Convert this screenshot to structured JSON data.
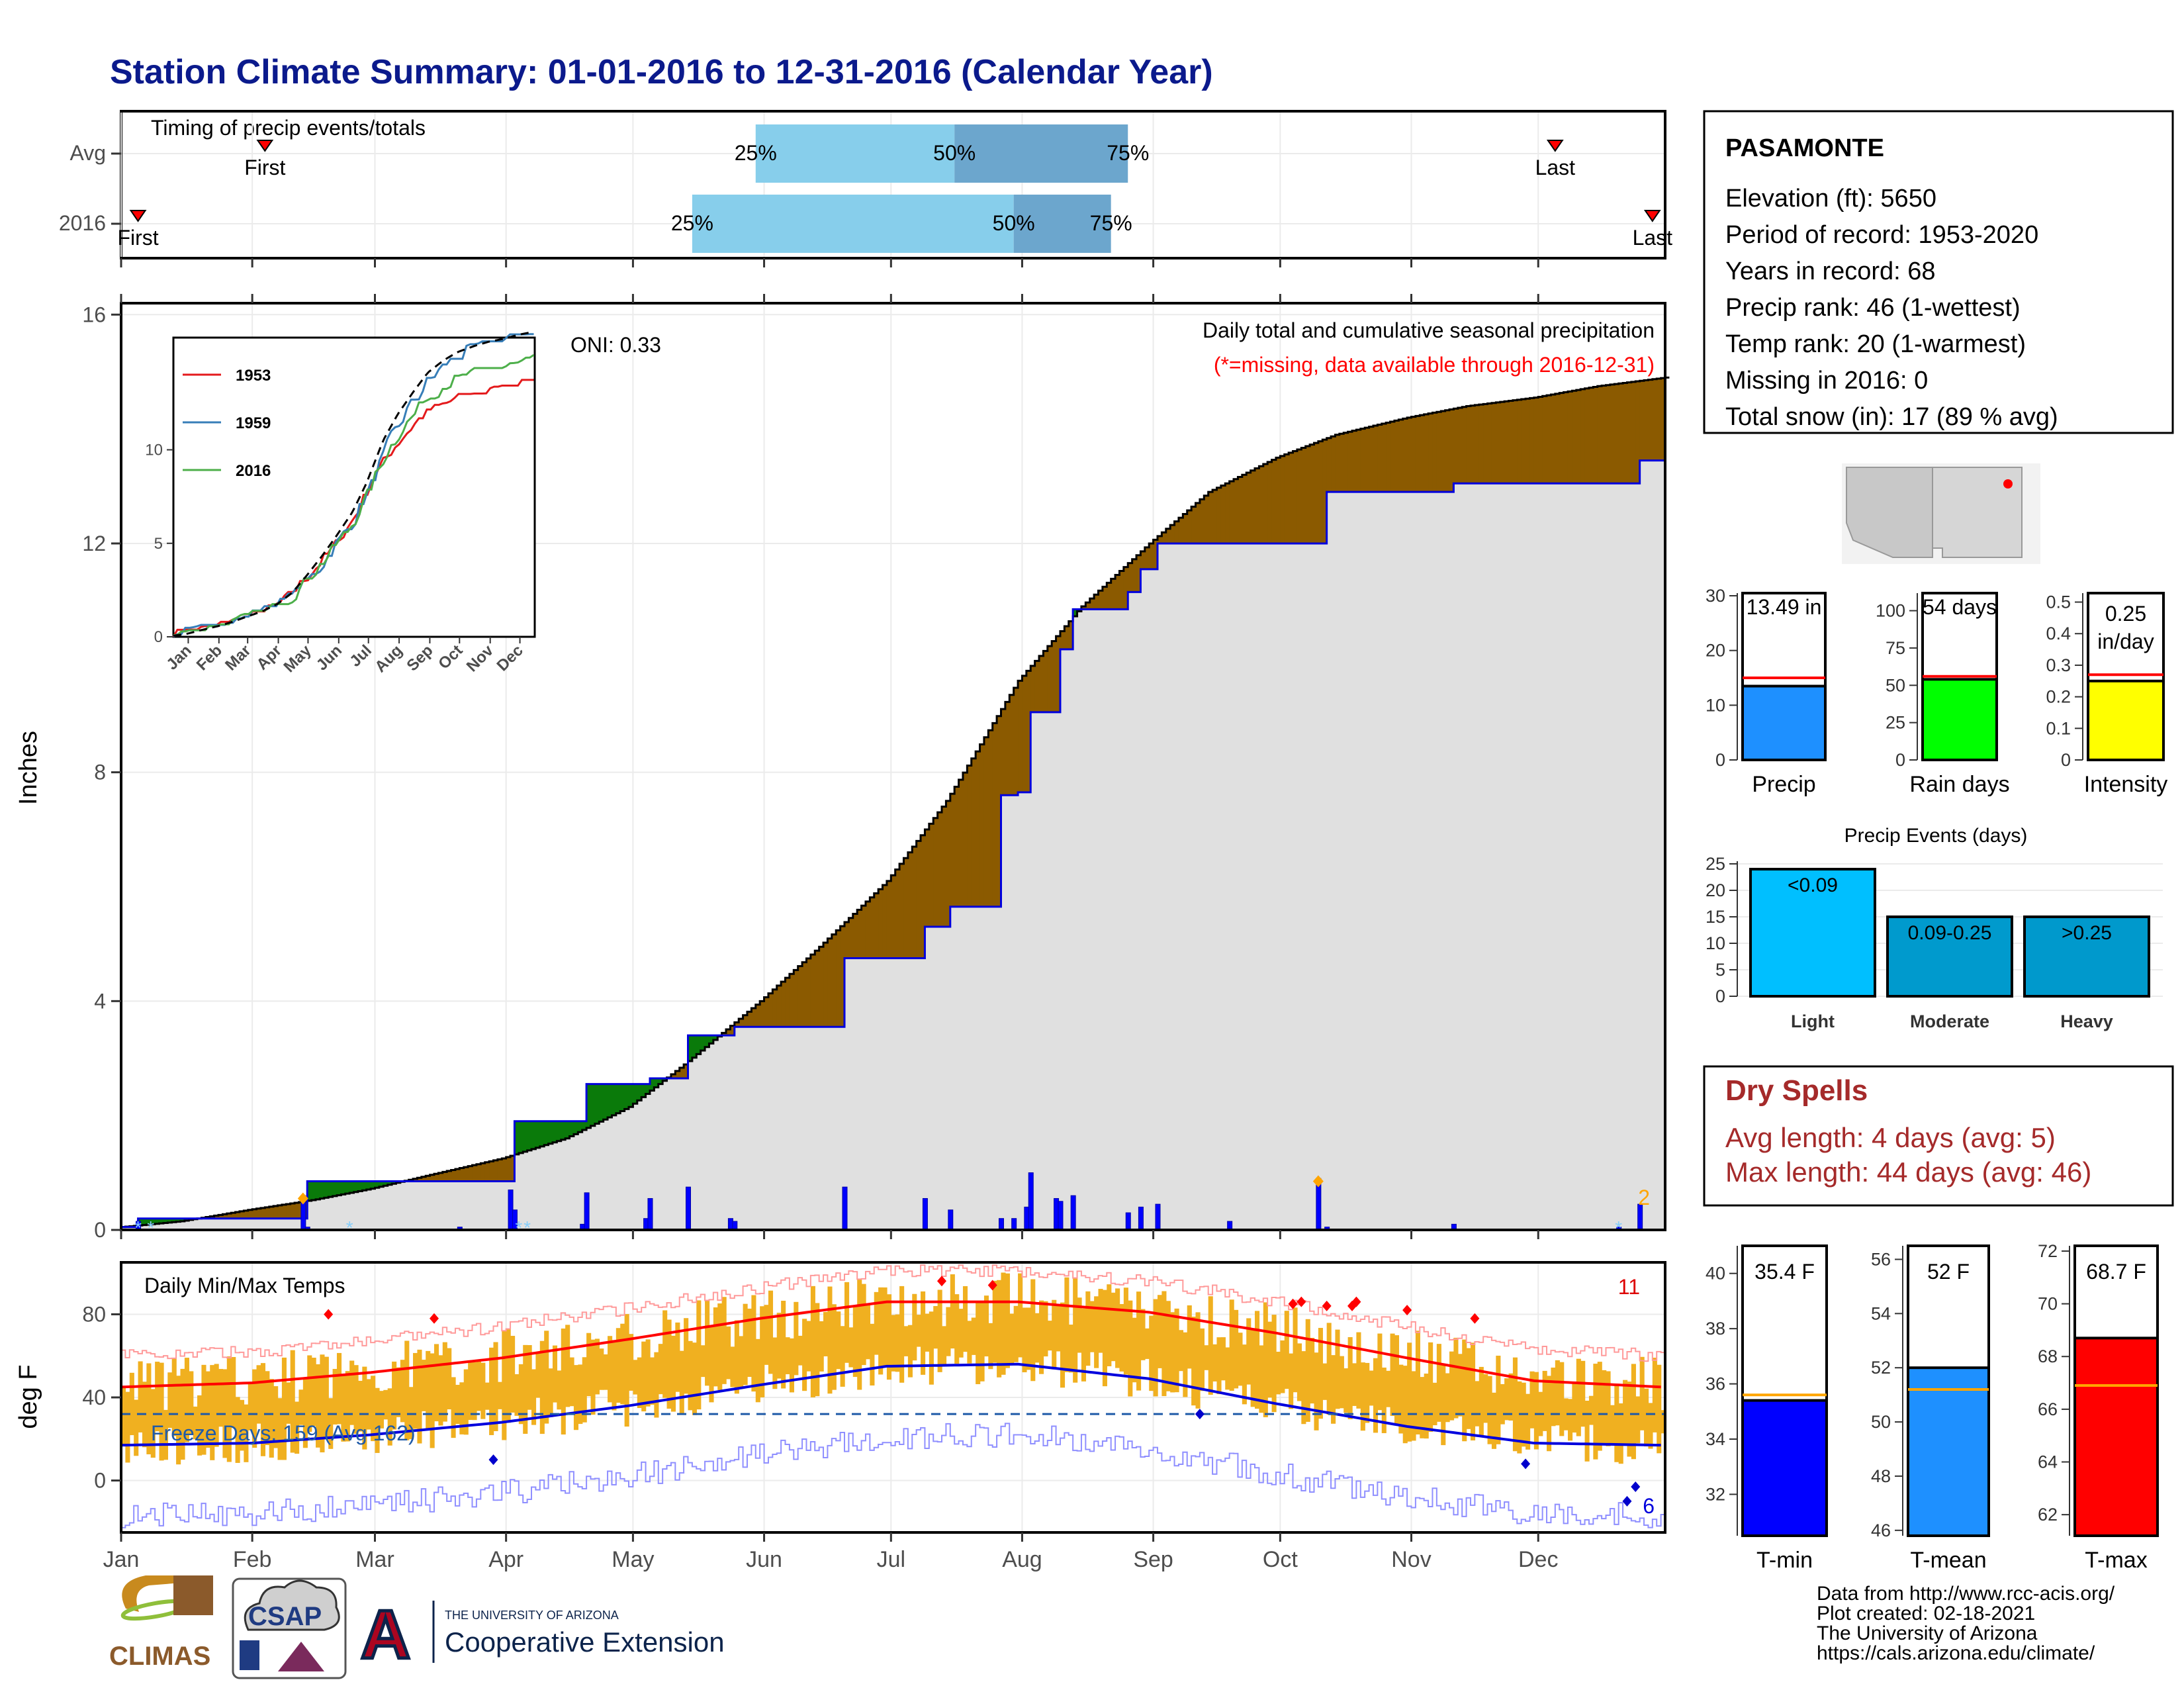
{
  "title": "Station Climate Summary: 01-01-2016 to 12-31-2016 (Calendar Year)",
  "timing": {
    "heading": "Timing of precip events/totals",
    "rows": [
      {
        "label": "Avg",
        "first_label": "First",
        "last_label": "Last",
        "first_day": 35,
        "last_day": 340,
        "p25_day": 151,
        "p50_day": 198,
        "p75_day": 239
      },
      {
        "label": "2016",
        "first_label": "First",
        "last_label": "Last",
        "first_day": 5,
        "last_day": 363,
        "p25_day": 136,
        "p50_day": 212,
        "p75_day": 235
      }
    ],
    "pct_labels": [
      "25%",
      "50%",
      "75%"
    ]
  },
  "precip_panel": {
    "ylabel": "Inches",
    "yticks": [
      0,
      4,
      8,
      12,
      16
    ],
    "ylim": [
      0,
      16
    ],
    "oni": "ONI: 0.33",
    "legend_title": "Daily total and cumulative seasonal precipitation",
    "legend_note": "(*=missing, data available through 2016-12-31)",
    "count_label": "2",
    "colors": {
      "avg_fill": "#8b5a00",
      "above_fill": "#0a7a0a",
      "below_fill": "#e0e0e0",
      "year_line": "#0000dd",
      "bars": "#0000ff",
      "snow": "#87cefa"
    }
  },
  "chart_data": [
    {
      "type": "area",
      "name": "cumulative precipitation",
      "x_unit": "day of year",
      "ylim": [
        0,
        16
      ],
      "series": [
        {
          "name": "Avg",
          "x": [
            1,
            15,
            31,
            46,
            60,
            75,
            91,
            106,
            121,
            135,
            152,
            166,
            182,
            196,
            213,
            228,
            244,
            258,
            274,
            288,
            305,
            319,
            335,
            350,
            366
          ],
          "y": [
            0.05,
            0.15,
            0.35,
            0.52,
            0.72,
            0.98,
            1.25,
            1.6,
            2.15,
            2.95,
            4.0,
            4.95,
            6.1,
            7.5,
            9.6,
            10.9,
            12.0,
            12.9,
            13.5,
            13.9,
            14.2,
            14.4,
            14.55,
            14.75,
            14.9
          ]
        },
        {
          "name": "2016",
          "x": [
            1,
            5,
            44,
            45,
            81,
            93,
            94,
            110,
            111,
            125,
            126,
            134,
            135,
            145,
            146,
            171,
            172,
            190,
            191,
            196,
            197,
            208,
            209,
            212,
            213,
            215,
            216,
            222,
            223,
            225,
            226,
            238,
            239,
            241,
            242,
            245,
            246,
            262,
            263,
            284,
            286,
            315,
            316,
            355,
            360,
            365
          ],
          "y": [
            0.05,
            0.2,
            0.2,
            0.85,
            0.85,
            0.85,
            1.9,
            1.9,
            2.55,
            2.55,
            2.65,
            2.65,
            3.4,
            3.4,
            3.55,
            3.55,
            4.75,
            4.75,
            5.3,
            5.3,
            5.65,
            5.65,
            7.6,
            7.6,
            7.65,
            7.65,
            9.05,
            9.05,
            10.15,
            10.15,
            10.85,
            10.85,
            11.15,
            11.15,
            11.55,
            11.55,
            12.0,
            12.0,
            12.0,
            12.0,
            12.9,
            12.9,
            13.05,
            13.05,
            13.45,
            13.45
          ]
        }
      ]
    },
    {
      "type": "bar",
      "name": "daily precipitation",
      "x_unit": "day of year",
      "x": [
        5,
        44,
        45,
        81,
        93,
        94,
        110,
        111,
        125,
        126,
        135,
        145,
        146,
        172,
        191,
        197,
        209,
        212,
        215,
        216,
        222,
        223,
        226,
        239,
        242,
        246,
        263,
        284,
        286,
        316,
        355,
        360
      ],
      "values": [
        0.15,
        0.6,
        0.05,
        0.05,
        0.7,
        0.35,
        0.1,
        0.65,
        0.2,
        0.55,
        0.75,
        0.2,
        0.15,
        0.75,
        0.55,
        0.35,
        0.2,
        0.2,
        0.4,
        1.0,
        0.55,
        0.5,
        0.6,
        0.3,
        0.4,
        0.45,
        0.15,
        0.9,
        0.05,
        0.1,
        0.05,
        0.45
      ]
    },
    {
      "type": "line",
      "name": "inset cumulative",
      "series_labels": [
        "1953",
        "1959",
        "2016"
      ],
      "colors": [
        "#e41a1c",
        "#377eb8",
        "#4daf4a"
      ],
      "yticks": [
        0,
        5,
        10
      ],
      "xticks": [
        "Jan",
        "Feb",
        "Mar",
        "Apr",
        "May",
        "Jun",
        "Jul",
        "Aug",
        "Sep",
        "Oct",
        "Nov",
        "Dec"
      ]
    },
    {
      "type": "bar",
      "name": "Daily Min/Max Temps",
      "title": "Daily Min/Max Temps",
      "ylabel": "deg F",
      "yticks": [
        0,
        40,
        80
      ],
      "ylim": [
        -25,
        105
      ],
      "freeze_label": "Freeze Days: 159 (Avg 162)",
      "record_high_count": "11",
      "record_low_count": "6",
      "xticks": [
        "Jan",
        "Feb",
        "Mar",
        "Apr",
        "May",
        "Jun",
        "Jul",
        "Aug",
        "Sep",
        "Oct",
        "Nov",
        "Dec"
      ],
      "normal_max_anchors": {
        "day": [
          1,
          32,
          60,
          91,
          121,
          152,
          182,
          213,
          244,
          274,
          305,
          335,
          365
        ],
        "temp": [
          45,
          47,
          52,
          59,
          68,
          78,
          86,
          86,
          81,
          71,
          59,
          48,
          45
        ]
      },
      "normal_min_anchors": {
        "day": [
          1,
          32,
          60,
          91,
          121,
          152,
          182,
          213,
          244,
          274,
          305,
          335,
          365
        ],
        "temp": [
          17,
          18,
          22,
          28,
          36,
          46,
          55,
          56,
          49,
          37,
          26,
          18,
          17
        ]
      }
    }
  ],
  "station": {
    "name": "PASAMONTE",
    "lines": [
      "Elevation (ft): 5650",
      "Period of record: 1953-2020",
      "Years in record: 68",
      "Precip rank: 46 (1-wettest)",
      "Temp rank: 20 (1-warmest)",
      "Missing in 2016: 0",
      "Total snow (in): 17 (89 % avg)"
    ]
  },
  "mini_bars": [
    {
      "label": "Precip",
      "value_label": "13.49 in",
      "value": 13.49,
      "avg": 15,
      "ylim": [
        0,
        30
      ],
      "yticks": [
        0,
        10,
        20,
        30
      ],
      "color": "#1e90ff"
    },
    {
      "label": "Rain days",
      "value_label": "54 days",
      "value": 54,
      "avg": 56,
      "ylim": [
        0,
        110
      ],
      "yticks": [
        0,
        25,
        50,
        75,
        100
      ],
      "color": "#00ff00"
    },
    {
      "label": "Intensity",
      "value_label": "0.25 in/day",
      "value_label_1": "0.25",
      "value_label_2": "in/day",
      "value": 0.25,
      "avg": 0.27,
      "ylim": [
        0,
        0.52
      ],
      "yticks": [
        0.0,
        0.1,
        0.2,
        0.3,
        0.4,
        0.5
      ],
      "color": "#ffff00"
    }
  ],
  "precip_events": {
    "title": "Precip Events (days)",
    "ylim": [
      0,
      25
    ],
    "yticks": [
      0,
      5,
      10,
      15,
      20,
      25
    ],
    "categories": [
      "Light",
      "Moderate",
      "Heavy"
    ],
    "bar_labels": [
      "<0.09",
      "0.09-0.25",
      ">0.25"
    ],
    "values": [
      24,
      15,
      15
    ],
    "colors": [
      "#00bfff",
      "#009acd",
      "#0099cc"
    ]
  },
  "dry_spells": {
    "title": "Dry Spells",
    "avg_line": "Avg length: 4 days (avg: 5)",
    "max_line": "Max length: 44 days (avg: 46)",
    "color": "#a52a2a"
  },
  "temp_bars": [
    {
      "label": "T-min",
      "value_label": "35.4 F",
      "value": 35.4,
      "avg": 35.6,
      "ylim": [
        30.5,
        41
      ],
      "yticks": [
        32,
        34,
        36,
        38,
        40
      ],
      "color": "#0000ff"
    },
    {
      "label": "T-mean",
      "value_label": "52 F",
      "value": 52.0,
      "avg": 51.2,
      "ylim": [
        45.8,
        56.5
      ],
      "yticks": [
        46,
        48,
        50,
        52,
        54,
        56
      ],
      "color": "#1e90ff"
    },
    {
      "label": "T-max",
      "value_label": "68.7 F",
      "value": 68.7,
      "avg": 66.9,
      "ylim": [
        61.2,
        72.2
      ],
      "yticks": [
        62,
        64,
        66,
        68,
        70,
        72
      ],
      "color": "#ff0000"
    }
  ],
  "footer": {
    "lines": [
      "Data from http://www.rcc-acis.org/",
      "Plot created: 02-18-2021",
      "The University of Arizona",
      "https://cals.arizona.edu/climate/"
    ]
  },
  "logos": {
    "climas": "CLIMAS",
    "csap": "CSAP",
    "ua_letter": "A",
    "ua_small": "THE UNIVERSITY OF ARIZONA",
    "ua_big": "Cooperative Extension"
  }
}
